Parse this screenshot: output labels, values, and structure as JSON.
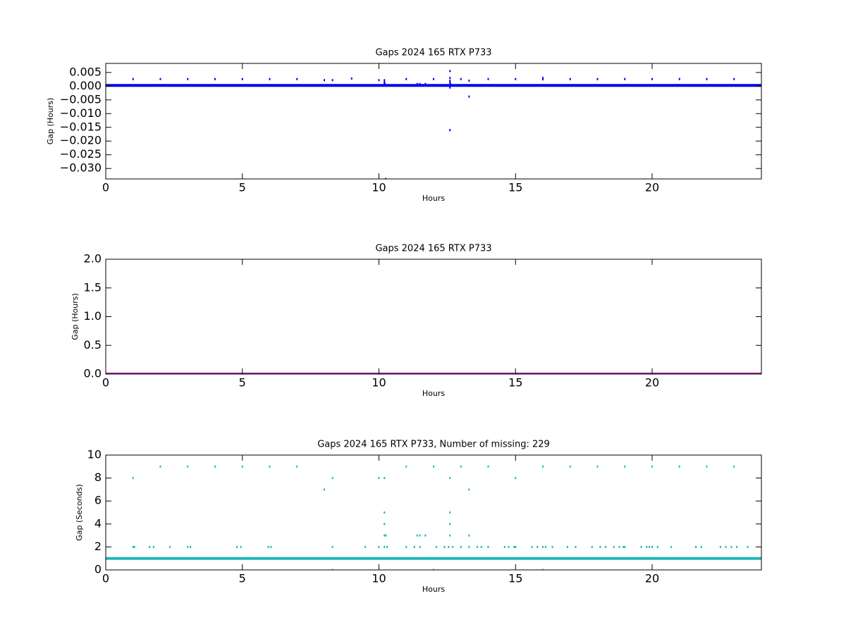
{
  "chart_data": [
    {
      "type": "scatter",
      "title": "Gaps 2024 165 RTX  P733",
      "xlabel": "Hours",
      "ylabel": "Gap (Hours)",
      "xlim": [
        0,
        24
      ],
      "xticks": [
        0,
        5,
        10,
        15,
        20
      ],
      "ylim": [
        -0.0338,
        0.0083
      ],
      "yticks": [
        {
          "value": -0.03,
          "label": "−0.030"
        },
        {
          "value": -0.025,
          "label": "−0.025"
        },
        {
          "value": -0.02,
          "label": "−0.020"
        },
        {
          "value": -0.015,
          "label": "−0.015"
        },
        {
          "value": -0.01,
          "label": "−0.010"
        },
        {
          "value": -0.005,
          "label": "−0.005"
        },
        {
          "value": 0,
          "label": "0.000"
        },
        0.005
      ],
      "series": [
        {
          "color": "#0000ee",
          "mode": "line",
          "x": [
            0,
            24
          ],
          "values": [
            0.000278,
            0.000278
          ]
        },
        {
          "color": "#0000ee",
          "mode": "markers",
          "x": [
            1,
            2,
            3,
            4,
            5,
            6,
            7,
            9,
            11,
            12,
            13,
            14,
            15,
            16,
            17,
            18,
            19,
            20,
            21,
            22,
            23,
            8,
            8.3,
            10,
            10.2,
            12.6,
            12.6,
            12.6,
            12.6,
            12.6,
            12.62,
            13.3,
            13.3,
            10.2,
            10.2,
            10.22,
            10.25,
            12.6,
            16,
            11.4,
            11.5,
            11.7
          ],
          "values": [
            0.0026,
            0.0026,
            0.0026,
            0.0026,
            0.0026,
            0.0026,
            0.0026,
            0.0028,
            0.0026,
            0.0026,
            0.0026,
            0.0026,
            0.0026,
            0.0025,
            0.0026,
            0.0026,
            0.0026,
            0.0026,
            0.0026,
            0.0026,
            0.0026,
            0.0022,
            0.0022,
            0.0022,
            0.0022,
            0.0055,
            0.003,
            0.002,
            0.0013,
            -0.0005,
            0.0008,
            0.002,
            -0.0038,
            0.0015,
            0.001,
            0.0008,
            -0.0338,
            -0.016,
            0.003,
            0.0008,
            0.0008,
            0.0008
          ]
        }
      ]
    },
    {
      "type": "scatter",
      "title": "Gaps 2024 165 RTX  P733",
      "xlabel": "Hours",
      "ylabel": "Gap (Hours)",
      "xlim": [
        0,
        24
      ],
      "xticks": [
        0,
        5,
        10,
        15,
        20
      ],
      "ylim": [
        0,
        2
      ],
      "yticks": [
        {
          "value": 0,
          "label": "0.0"
        },
        0.5,
        {
          "value": 1,
          "label": "1.0"
        },
        1.5,
        {
          "value": 2,
          "label": "2.0"
        }
      ],
      "series": [
        {
          "color": "#a020a0",
          "mode": "line",
          "x": [
            0,
            24
          ],
          "values": [
            0.000278,
            0.000278
          ]
        }
      ]
    },
    {
      "type": "scatter",
      "title": "Gaps 2024 165 RTX  P733, Number of missing: 229",
      "xlabel": "Hours",
      "ylabel": "Gap (Seconds)",
      "xlim": [
        0,
        24
      ],
      "xticks": [
        0,
        5,
        10,
        15,
        20
      ],
      "ylim": [
        0,
        10
      ],
      "yticks": [
        0,
        2,
        4,
        6,
        8,
        10
      ],
      "series": [
        {
          "color": "#1fb8b8",
          "mode": "line",
          "x": [
            0,
            24
          ],
          "values": [
            1,
            1
          ]
        },
        {
          "color": "#1fb8b8",
          "mode": "markers",
          "x": [
            2,
            3,
            4,
            5,
            6,
            7,
            11,
            12,
            13,
            14,
            16,
            17,
            18,
            19,
            20,
            21,
            22,
            23,
            1,
            8.3,
            10,
            10.2,
            12.6,
            15,
            8,
            13.3,
            10.2,
            12.6,
            10.2,
            12.6,
            10.2,
            10.25,
            11.4,
            11.5,
            11.7,
            12.6,
            13.3,
            8.3,
            12,
            16,
            1,
            1.05,
            1.6,
            1.75,
            2.35,
            3,
            3.1,
            4.8,
            4.95,
            5.95,
            6.05,
            8.3,
            9.5,
            10,
            10.2,
            10.3,
            11,
            11.3,
            11.5,
            12.1,
            12.4,
            12.55,
            12.7,
            13,
            13.3,
            13.6,
            13.75,
            14,
            14.6,
            14.75,
            14.95,
            15,
            15.6,
            15.8,
            16,
            16.1,
            16.35,
            16.9,
            17.2,
            17.8,
            18.1,
            18.3,
            18.6,
            18.8,
            18.95,
            19,
            19.6,
            19.8,
            19.9,
            20,
            20.2,
            20.7,
            21.6,
            21.8,
            22.5,
            22.7,
            22.9,
            23.1,
            23.5
          ],
          "values": [
            9,
            9,
            9,
            9,
            9,
            9,
            9,
            9,
            9,
            9,
            9,
            9,
            9,
            9,
            9,
            9,
            9,
            9,
            8,
            8,
            8,
            8,
            8,
            8,
            7,
            7,
            5,
            5,
            4,
            4,
            3,
            3,
            3,
            3,
            3,
            3,
            3,
            0,
            0,
            0,
            2,
            2,
            2,
            2,
            2,
            2,
            2,
            2,
            2,
            2,
            2,
            2,
            2,
            2,
            2,
            2,
            2,
            2,
            2,
            2,
            2,
            2,
            2,
            2,
            2,
            2,
            2,
            2,
            2,
            2,
            2,
            2,
            2,
            2,
            2,
            2,
            2,
            2,
            2,
            2,
            2,
            2,
            2,
            2,
            2,
            2,
            2,
            2,
            2,
            2,
            2,
            2,
            2,
            2,
            2,
            2,
            2,
            2,
            2
          ]
        }
      ]
    }
  ]
}
